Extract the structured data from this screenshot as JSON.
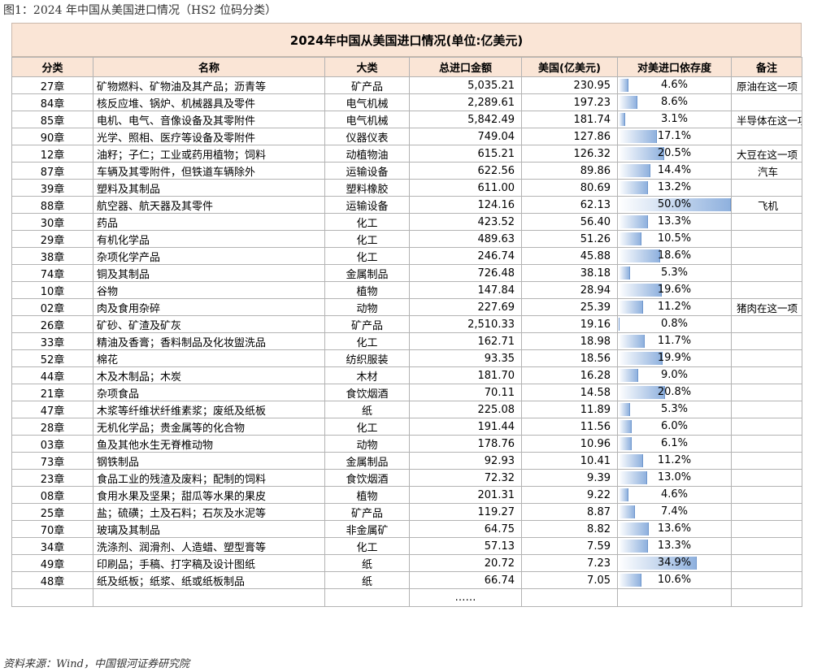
{
  "figure_title": "图1：2024 年中国从美国进口情况（HS2 位码分类）",
  "table_title": "2024年中国从美国进口情况(单位:亿美元)",
  "headers": [
    "分类",
    "名称",
    "大类",
    "总进口金额",
    "美国(亿美元)",
    "对美进口依存度",
    "备注"
  ],
  "rows": [
    {
      "code": "27章",
      "name": "矿物燃料、矿物油及其产品；沥青等",
      "category": "矿产品",
      "total": "5,035.21",
      "us": "230.95",
      "dep": "4.6%",
      "dep_value": 4.6,
      "note": "原油在这一项"
    },
    {
      "code": "84章",
      "name": "核反应堆、锅炉、机械器具及零件",
      "category": "电气机械",
      "total": "2,289.61",
      "us": "197.23",
      "dep": "8.6%",
      "dep_value": 8.6,
      "note": ""
    },
    {
      "code": "85章",
      "name": "电机、电气、音像设备及其零附件",
      "category": "电气机械",
      "total": "5,842.49",
      "us": "181.74",
      "dep": "3.1%",
      "dep_value": 3.1,
      "note": "半导体在这一项"
    },
    {
      "code": "90章",
      "name": "光学、照相、医疗等设备及零附件",
      "category": "仪器仪表",
      "total": "749.04",
      "us": "127.86",
      "dep": "17.1%",
      "dep_value": 17.1,
      "note": ""
    },
    {
      "code": "12章",
      "name": "油籽；子仁；工业或药用植物；饲料",
      "category": "动植物油",
      "total": "615.21",
      "us": "126.32",
      "dep": "20.5%",
      "dep_value": 20.5,
      "note": "大豆在这一项"
    },
    {
      "code": "87章",
      "name": "车辆及其零附件，但铁道车辆除外",
      "category": "运输设备",
      "total": "622.56",
      "us": "89.86",
      "dep": "14.4%",
      "dep_value": 14.4,
      "note": "汽车"
    },
    {
      "code": "39章",
      "name": "塑料及其制品",
      "category": "塑料橡胶",
      "total": "611.00",
      "us": "80.69",
      "dep": "13.2%",
      "dep_value": 13.2,
      "note": ""
    },
    {
      "code": "88章",
      "name": "航空器、航天器及其零件",
      "category": "运输设备",
      "total": "124.16",
      "us": "62.13",
      "dep": "50.0%",
      "dep_value": 50.0,
      "note": "飞机"
    },
    {
      "code": "30章",
      "name": "药品",
      "category": "化工",
      "total": "423.52",
      "us": "56.40",
      "dep": "13.3%",
      "dep_value": 13.3,
      "note": ""
    },
    {
      "code": "29章",
      "name": "有机化学品",
      "category": "化工",
      "total": "489.63",
      "us": "51.26",
      "dep": "10.5%",
      "dep_value": 10.5,
      "note": ""
    },
    {
      "code": "38章",
      "name": "杂项化学产品",
      "category": "化工",
      "total": "246.74",
      "us": "45.88",
      "dep": "18.6%",
      "dep_value": 18.6,
      "note": ""
    },
    {
      "code": "74章",
      "name": "铜及其制品",
      "category": "金属制品",
      "total": "726.48",
      "us": "38.18",
      "dep": "5.3%",
      "dep_value": 5.3,
      "note": ""
    },
    {
      "code": "10章",
      "name": "谷物",
      "category": "植物",
      "total": "147.84",
      "us": "28.94",
      "dep": "19.6%",
      "dep_value": 19.6,
      "note": ""
    },
    {
      "code": "02章",
      "name": "肉及食用杂碎",
      "category": "动物",
      "total": "227.69",
      "us": "25.39",
      "dep": "11.2%",
      "dep_value": 11.2,
      "note": "猪肉在这一项"
    },
    {
      "code": "26章",
      "name": "矿砂、矿渣及矿灰",
      "category": "矿产品",
      "total": "2,510.33",
      "us": "19.16",
      "dep": "0.8%",
      "dep_value": 0.8,
      "note": ""
    },
    {
      "code": "33章",
      "name": "精油及香膏；香料制品及化妆盥洗品",
      "category": "化工",
      "total": "162.71",
      "us": "18.98",
      "dep": "11.7%",
      "dep_value": 11.7,
      "note": ""
    },
    {
      "code": "52章",
      "name": "棉花",
      "category": "纺织服装",
      "total": "93.35",
      "us": "18.56",
      "dep": "19.9%",
      "dep_value": 19.9,
      "note": ""
    },
    {
      "code": "44章",
      "name": "木及木制品；木炭",
      "category": "木材",
      "total": "181.70",
      "us": "16.28",
      "dep": "9.0%",
      "dep_value": 9.0,
      "note": ""
    },
    {
      "code": "21章",
      "name": "杂项食品",
      "category": "食饮烟酒",
      "total": "70.11",
      "us": "14.58",
      "dep": "20.8%",
      "dep_value": 20.8,
      "note": ""
    },
    {
      "code": "47章",
      "name": "木浆等纤维状纤维素浆；废纸及纸板",
      "category": "纸",
      "total": "225.08",
      "us": "11.89",
      "dep": "5.3%",
      "dep_value": 5.3,
      "note": ""
    },
    {
      "code": "28章",
      "name": "无机化学品；贵金属等的化合物",
      "category": "化工",
      "total": "191.44",
      "us": "11.56",
      "dep": "6.0%",
      "dep_value": 6.0,
      "note": ""
    },
    {
      "code": "03章",
      "name": "鱼及其他水生无脊椎动物",
      "category": "动物",
      "total": "178.76",
      "us": "10.96",
      "dep": "6.1%",
      "dep_value": 6.1,
      "note": ""
    },
    {
      "code": "73章",
      "name": "钢铁制品",
      "category": "金属制品",
      "total": "92.93",
      "us": "10.41",
      "dep": "11.2%",
      "dep_value": 11.2,
      "note": ""
    },
    {
      "code": "23章",
      "name": "食品工业的残渣及废料；配制的饲料",
      "category": "食饮烟酒",
      "total": "72.32",
      "us": "9.39",
      "dep": "13.0%",
      "dep_value": 13.0,
      "note": ""
    },
    {
      "code": "08章",
      "name": "食用水果及坚果；甜瓜等水果的果皮",
      "category": "植物",
      "total": "201.31",
      "us": "9.22",
      "dep": "4.6%",
      "dep_value": 4.6,
      "note": ""
    },
    {
      "code": "25章",
      "name": "盐；硫磺；土及石料；石灰及水泥等",
      "category": "矿产品",
      "total": "119.27",
      "us": "8.87",
      "dep": "7.4%",
      "dep_value": 7.4,
      "note": ""
    },
    {
      "code": "70章",
      "name": "玻璃及其制品",
      "category": "非金属矿",
      "total": "64.75",
      "us": "8.82",
      "dep": "13.6%",
      "dep_value": 13.6,
      "note": ""
    },
    {
      "code": "34章",
      "name": "洗涤剂、润滑剂、人造蜡、塑型膏等",
      "category": "化工",
      "total": "57.13",
      "us": "7.59",
      "dep": "13.3%",
      "dep_value": 13.3,
      "note": ""
    },
    {
      "code": "49章",
      "name": "印刷品；手稿、打字稿及设计图纸",
      "category": "纸",
      "total": "20.72",
      "us": "7.23",
      "dep": "34.9%",
      "dep_value": 34.9,
      "note": ""
    },
    {
      "code": "48章",
      "name": "纸及纸板；纸浆、纸或纸板制品",
      "category": "纸",
      "total": "66.74",
      "us": "7.05",
      "dep": "10.6%",
      "dep_value": 10.6,
      "note": ""
    }
  ],
  "ellipsis": "……",
  "dependency_bar_max": 50.0,
  "bar_color": "#8fb1de",
  "header_bg": "#fae5d6",
  "source": "资料来源：Wind，中国银河证券研究院"
}
